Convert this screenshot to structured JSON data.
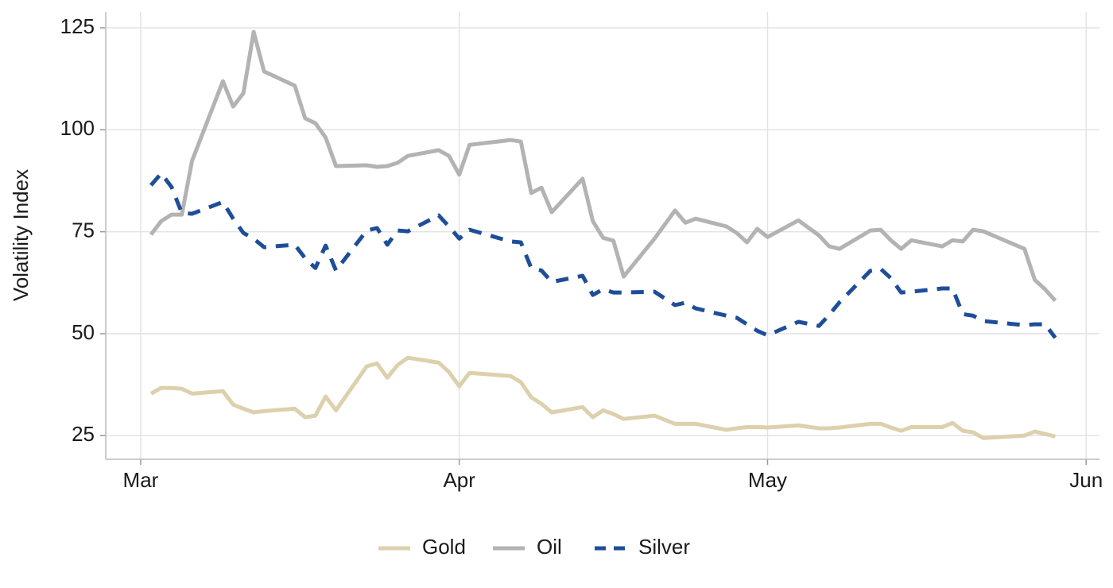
{
  "chart_data": {
    "type": "line",
    "y_label": "Volatility Index",
    "x": [
      1,
      2,
      3,
      4,
      5,
      8,
      9,
      10,
      11,
      12,
      15,
      16,
      17,
      18,
      19,
      22,
      23,
      24,
      25,
      26,
      29,
      30,
      31,
      32,
      36,
      37,
      38,
      39,
      40,
      43,
      44,
      45,
      46,
      47,
      50,
      52,
      53,
      54,
      57,
      58,
      59,
      60,
      61,
      64,
      66,
      67,
      68,
      71,
      72,
      73,
      74,
      75,
      78,
      79,
      80,
      81,
      82,
      86,
      87,
      88,
      89
    ],
    "series": [
      {
        "name": "Gold",
        "color": "#ddd0ad",
        "line_style": "solid",
        "values": [
          35.3,
          36.7,
          36.7,
          36.5,
          35.3,
          35.9,
          32.6,
          31.6,
          30.7,
          31.0,
          31.6,
          29.5,
          29.9,
          34.6,
          31.2,
          42.0,
          42.7,
          39.2,
          42.3,
          44.1,
          42.9,
          40.6,
          37.1,
          40.4,
          39.6,
          38.1,
          34.4,
          32.8,
          30.7,
          32.0,
          29.5,
          31.2,
          30.3,
          29.1,
          29.9,
          27.9,
          27.9,
          27.9,
          26.4,
          26.8,
          27.1,
          27.1,
          27.0,
          27.5,
          26.8,
          26.8,
          27.0,
          27.9,
          27.9,
          27.0,
          26.2,
          27.1,
          27.1,
          28.1,
          26.2,
          25.8,
          24.4,
          25.0,
          26.0,
          25.4,
          24.8
        ]
      },
      {
        "name": "Oil",
        "color": "#b3b3b3",
        "line_style": "solid",
        "values": [
          74.3,
          77.6,
          79.2,
          79.2,
          92.4,
          111.9,
          105.7,
          109.0,
          124.0,
          114.3,
          110.8,
          102.8,
          101.6,
          98.1,
          91.1,
          91.3,
          90.9,
          91.1,
          91.9,
          93.6,
          95.0,
          93.6,
          89.0,
          96.3,
          97.5,
          97.1,
          84.5,
          85.8,
          79.8,
          88.0,
          77.6,
          73.5,
          72.8,
          64.0,
          73.3,
          80.2,
          77.2,
          78.2,
          76.3,
          74.7,
          72.4,
          75.7,
          73.7,
          77.8,
          74.1,
          71.4,
          70.8,
          75.3,
          75.5,
          72.9,
          70.8,
          72.9,
          71.4,
          72.9,
          72.6,
          75.5,
          75.1,
          70.8,
          63.2,
          60.9,
          58.1
        ]
      },
      {
        "name": "Silver",
        "color": "#1f4e99",
        "line_style": "dashed",
        "values": [
          86.4,
          89.3,
          86.0,
          79.6,
          79.4,
          82.3,
          78.2,
          74.7,
          73.3,
          71.2,
          71.8,
          68.5,
          66.1,
          71.6,
          65.5,
          75.3,
          75.9,
          71.8,
          75.3,
          75.1,
          79.0,
          76.3,
          73.3,
          75.5,
          72.6,
          72.4,
          66.1,
          65.5,
          62.7,
          64.2,
          59.5,
          60.9,
          60.1,
          60.1,
          60.3,
          57.0,
          57.6,
          56.2,
          54.4,
          53.9,
          52.3,
          50.7,
          49.6,
          52.9,
          51.9,
          54.6,
          57.7,
          65.4,
          65.9,
          63.6,
          60.1,
          60.3,
          61.1,
          61.1,
          54.8,
          54.4,
          53.1,
          52.1,
          52.3,
          52.3,
          49.0
        ]
      }
    ],
    "xlim": [
      -3.4,
      93.3
    ],
    "xticks": [
      {
        "value": 0,
        "label": "Mar"
      },
      {
        "value": 31,
        "label": "Apr"
      },
      {
        "value": 61,
        "label": "May"
      },
      {
        "value": 92,
        "label": "Jun"
      }
    ],
    "ylim": [
      19.2,
      128.9
    ],
    "yticks": [
      25,
      50,
      75,
      100,
      125
    ],
    "grid": true,
    "legend": "bottom"
  }
}
